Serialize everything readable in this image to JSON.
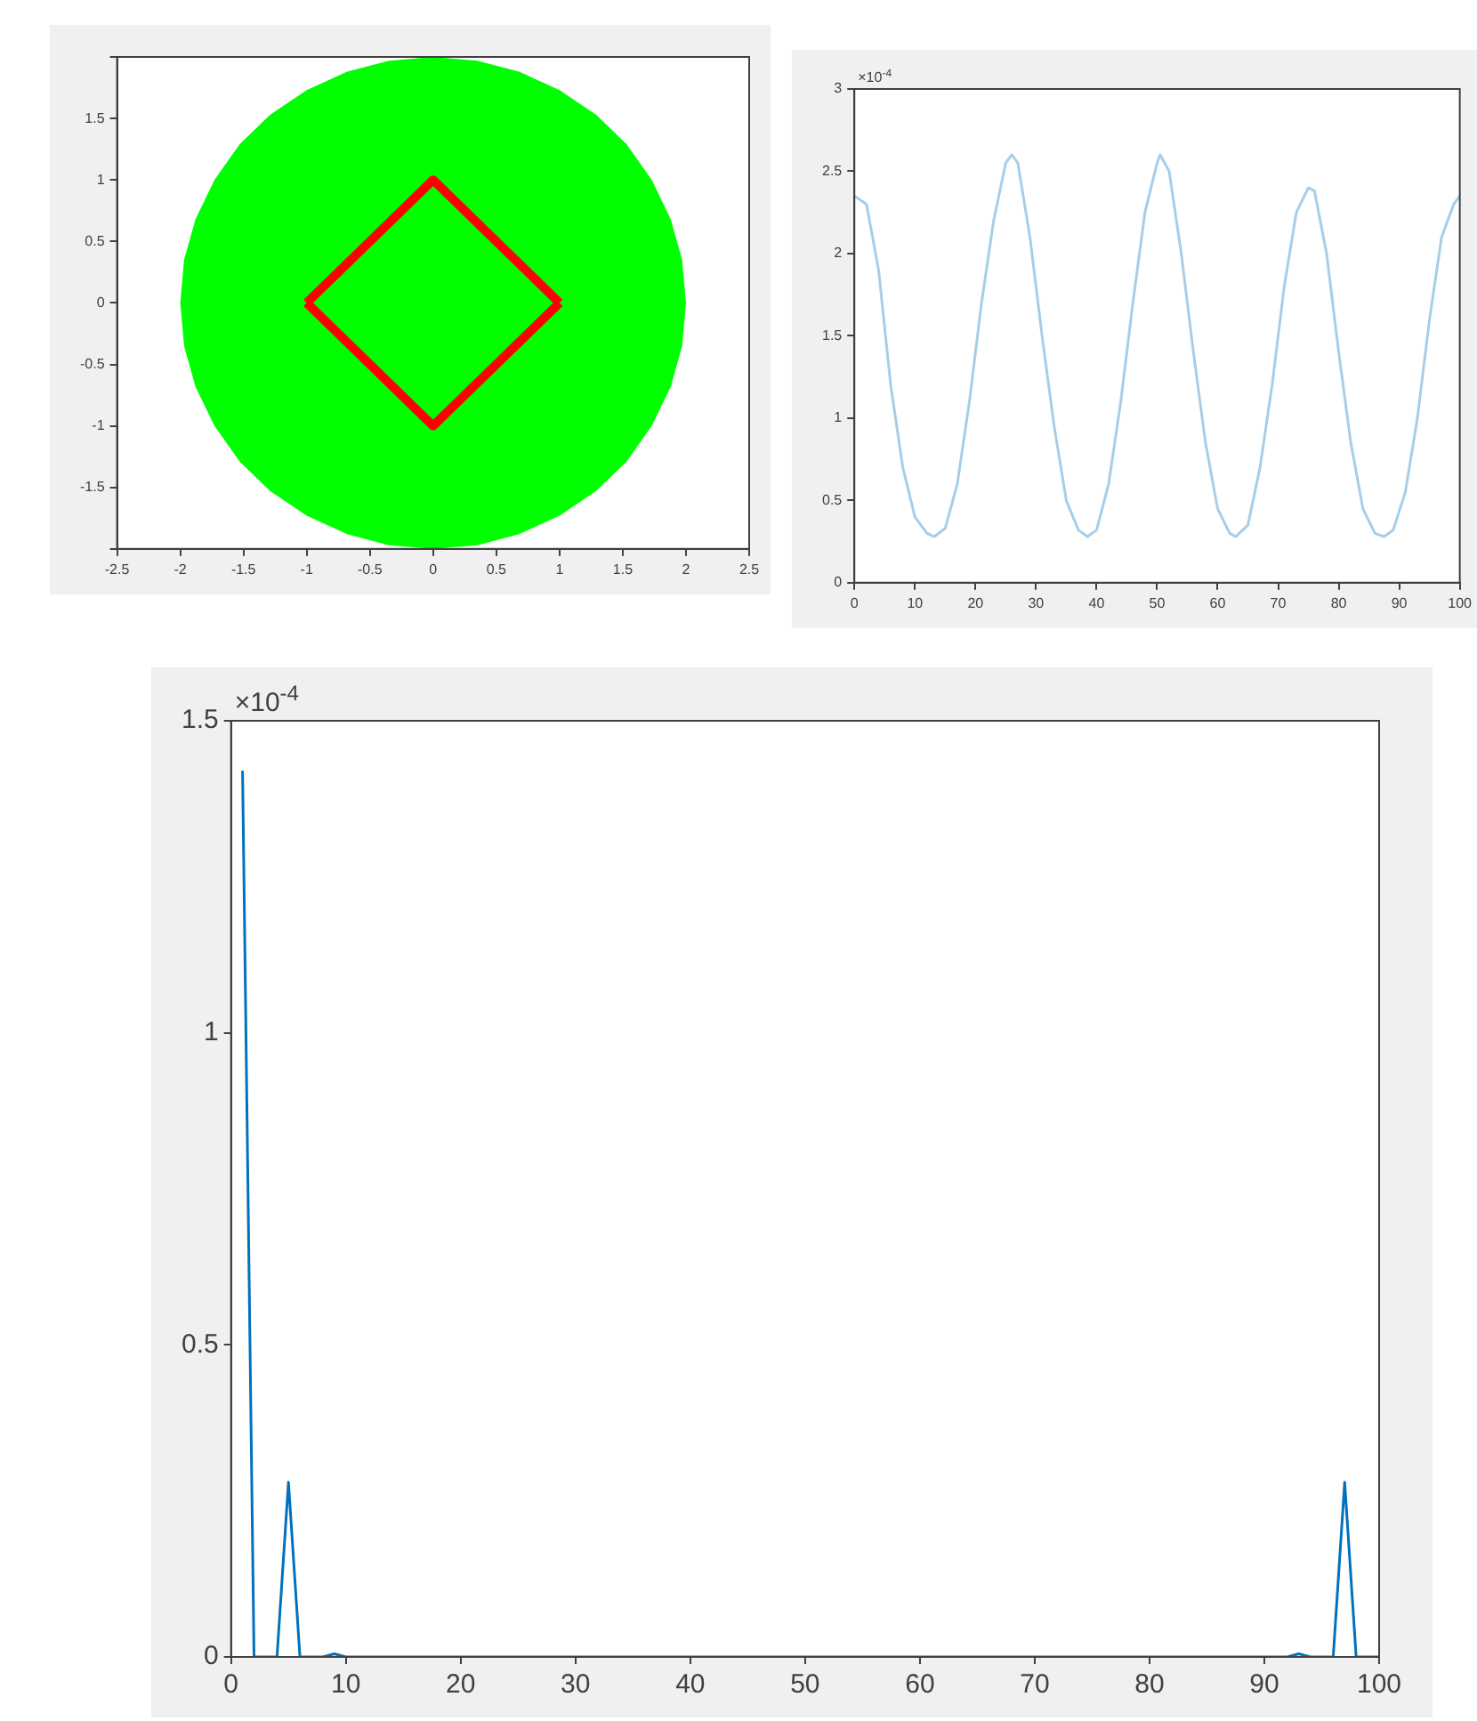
{
  "chart_data": [
    {
      "type": "line",
      "xlim": [
        -2.5,
        2.5
      ],
      "ylim": [
        -2,
        2
      ],
      "xticks": [
        -2.5,
        -2,
        -1.5,
        -1,
        -0.5,
        0,
        0.5,
        1,
        1.5,
        2,
        2.5
      ],
      "yticks": [
        {
          "value": -2,
          "label": null
        },
        -1.5,
        -1,
        -0.5,
        0,
        0.5,
        1,
        1.5,
        {
          "value": 2,
          "label": null
        }
      ],
      "grid": false,
      "legend": false,
      "series": [
        {
          "type": "area",
          "color": "#00ff00",
          "x": [
            2,
            1.97,
            1.88,
            1.73,
            1.53,
            1.29,
            1,
            0.68,
            0.35,
            0,
            -0.35,
            -0.68,
            -1,
            -1.29,
            -1.53,
            -1.73,
            -1.88,
            -1.97,
            -2,
            -1.97,
            -1.88,
            -1.73,
            -1.53,
            -1.29,
            -1,
            -0.68,
            -0.35,
            0,
            0.35,
            0.68,
            1,
            1.29,
            1.53,
            1.73,
            1.88,
            1.97,
            2
          ],
          "values": [
            0,
            0.35,
            0.68,
            1,
            1.29,
            1.53,
            1.73,
            1.88,
            1.97,
            2,
            1.97,
            1.88,
            1.73,
            1.53,
            1.29,
            1,
            0.68,
            0.35,
            0,
            -0.35,
            -0.68,
            -1,
            -1.29,
            -1.53,
            -1.73,
            -1.88,
            -1.97,
            -2,
            -1.97,
            -1.88,
            -1.73,
            -1.53,
            -1.29,
            -1,
            -0.68,
            -0.35,
            0
          ]
        },
        {
          "type": "line",
          "color": "#ff0000",
          "x": [
            -1,
            0,
            1
          ],
          "values": [
            0,
            1,
            0
          ]
        },
        {
          "type": "line",
          "color": "#ff0000",
          "x": [
            -1,
            0,
            1
          ],
          "values": [
            0,
            -1,
            0
          ]
        }
      ]
    },
    {
      "type": "line",
      "ylabel": "×10$^{-4}$",
      "xlim": [
        0,
        100
      ],
      "ylim": [
        0,
        3
      ],
      "xticks": [
        0,
        10,
        20,
        30,
        40,
        50,
        60,
        70,
        80,
        90,
        100
      ],
      "yticks": [
        0,
        0.5,
        1,
        1.5,
        2,
        2.5,
        3
      ],
      "grid": false,
      "legend": false,
      "series": [
        {
          "color": "#a6cee8",
          "x": [
            0,
            2,
            4,
            6,
            8,
            10,
            12,
            13.2,
            15,
            17,
            19,
            21,
            23,
            25,
            26,
            27,
            29,
            31,
            33,
            35,
            37,
            38.5,
            40,
            42,
            44,
            46,
            48,
            50,
            50.5,
            52,
            54,
            56,
            58,
            60,
            62,
            63,
            65,
            67,
            69,
            71,
            73,
            75,
            76,
            78,
            80,
            82,
            84,
            86,
            87.5,
            89,
            91,
            93,
            95,
            97,
            99,
            100
          ],
          "values": [
            2.35,
            2.3,
            1.9,
            1.2,
            0.7,
            0.4,
            0.3,
            0.28,
            0.33,
            0.6,
            1.1,
            1.7,
            2.2,
            2.55,
            2.6,
            2.55,
            2.1,
            1.5,
            0.95,
            0.5,
            0.32,
            0.28,
            0.32,
            0.6,
            1.1,
            1.7,
            2.25,
            2.55,
            2.6,
            2.5,
            2,
            1.4,
            0.85,
            0.45,
            0.3,
            0.28,
            0.35,
            0.7,
            1.2,
            1.8,
            2.25,
            2.4,
            2.38,
            2,
            1.4,
            0.85,
            0.45,
            0.3,
            0.28,
            0.32,
            0.55,
            1,
            1.6,
            2.1,
            2.3,
            2.35
          ]
        }
      ]
    },
    {
      "type": "line",
      "ylabel": "×10$^{-4}$",
      "xlim": [
        0,
        100
      ],
      "ylim": [
        0,
        1.5
      ],
      "xticks": [
        0,
        10,
        20,
        30,
        40,
        50,
        60,
        70,
        80,
        90,
        100
      ],
      "yticks": [
        0,
        0.5,
        1,
        1.5
      ],
      "grid": false,
      "legend": false,
      "series": [
        {
          "color": "#0072bd",
          "x": [
            1,
            2,
            3,
            4,
            5,
            6,
            7,
            8,
            9,
            10,
            11,
            50,
            91,
            92,
            93,
            94,
            95,
            96,
            97,
            98,
            99,
            100
          ],
          "values": [
            1.42,
            0,
            0,
            0,
            0.28,
            0,
            0,
            0,
            0.005,
            0,
            0,
            0,
            0,
            0,
            0.005,
            0,
            0,
            0,
            0.28,
            0,
            0,
            0
          ]
        }
      ]
    }
  ]
}
